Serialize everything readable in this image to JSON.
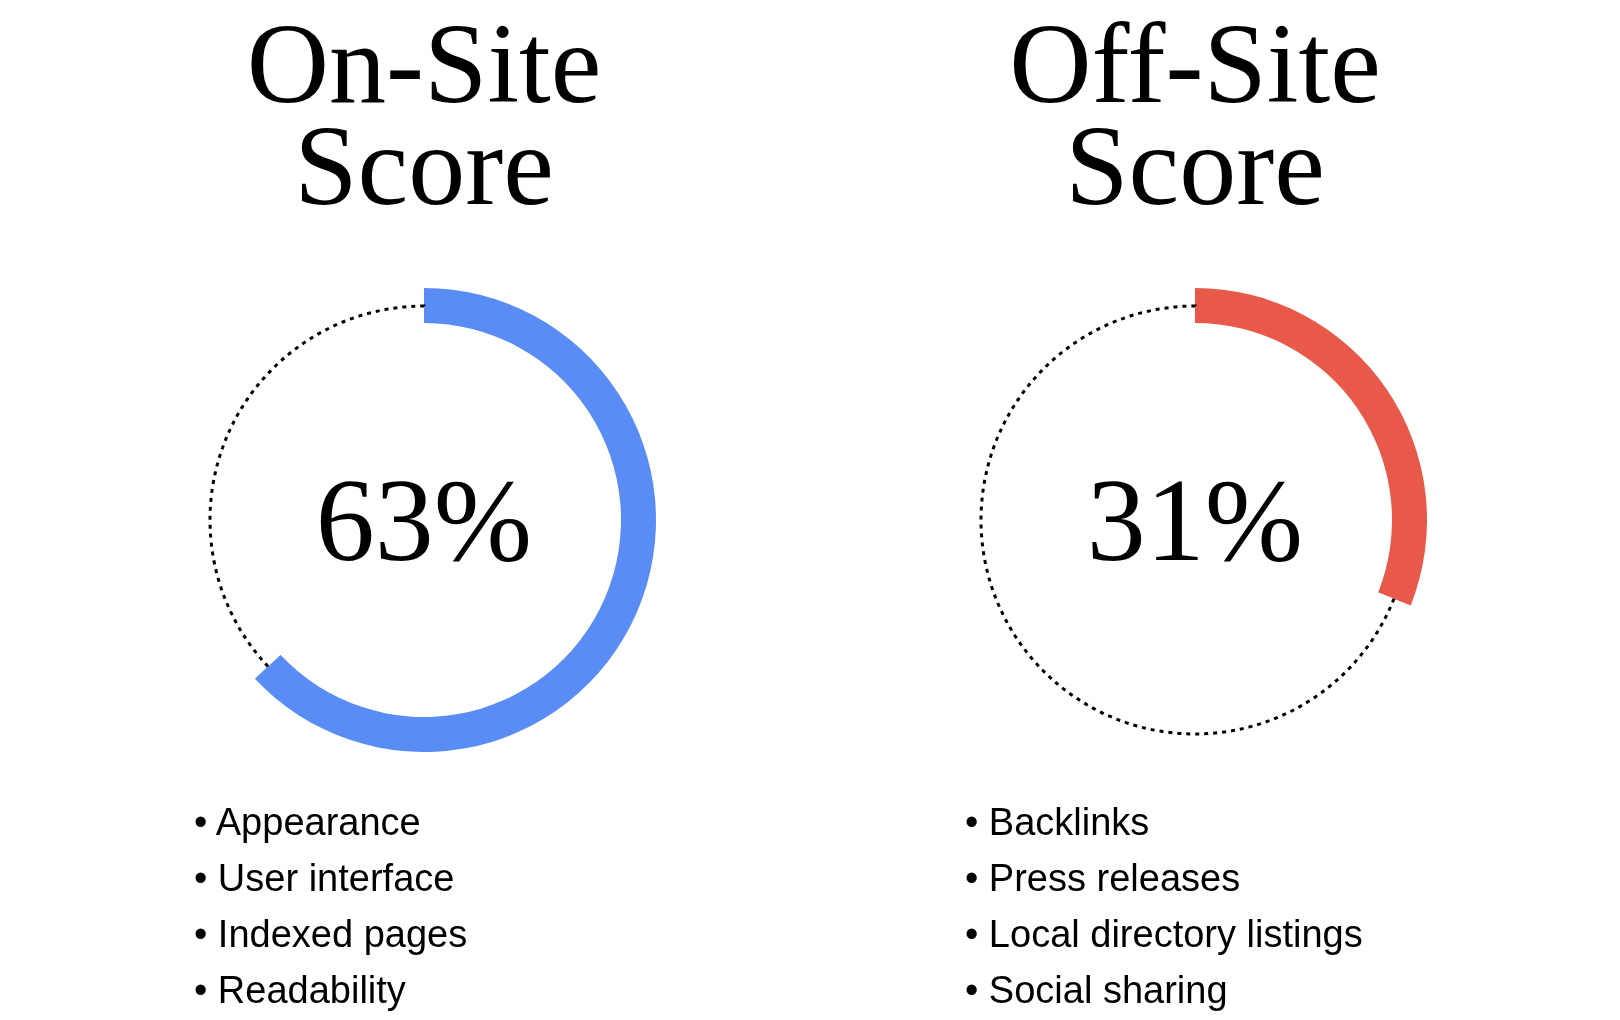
{
  "chart_data": [
    {
      "type": "donut",
      "title": "On-Site Score",
      "categories": [
        null,
        null
      ],
      "values": [
        63,
        37
      ],
      "colors": [
        "#598cf5",
        "#000000"
      ],
      "line_style": "dotted",
      "annotations": [
        "63%",
        "• Appearance",
        "• User interface",
        "• Indexed pages",
        "• Readability"
      ]
    },
    {
      "type": "donut",
      "title": "Off-Site Score",
      "categories": [
        null,
        null
      ],
      "values": [
        31,
        69
      ],
      "colors": [
        "#e8594a",
        "#000000"
      ],
      "line_style": "dotted",
      "annotations": [
        "31%",
        "• Backlinks",
        "• Press releases",
        "• Local directory listings",
        "• Social sharing"
      ]
    }
  ]
}
